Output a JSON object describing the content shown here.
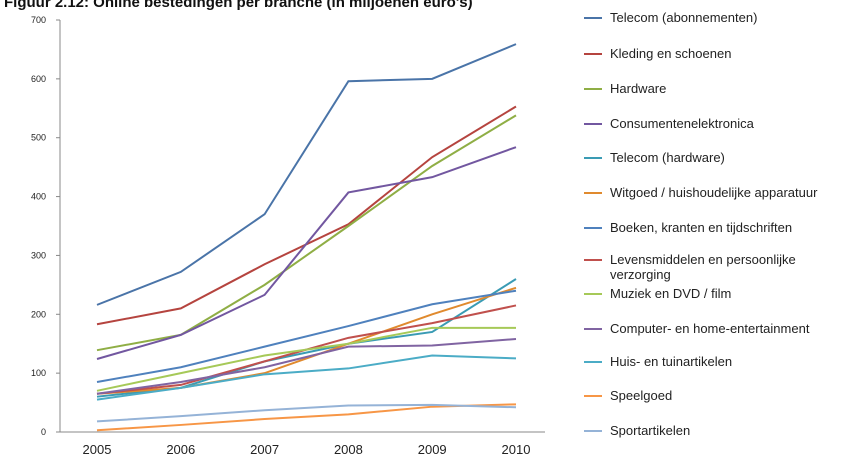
{
  "chart_data": {
    "type": "line",
    "title": "Figuur 2.12: Online bestedingen per branche (in miljoenen euro's)",
    "categories": [
      "2005",
      "2006",
      "2007",
      "2008",
      "2009",
      "2010"
    ],
    "ylim": [
      0,
      700
    ],
    "yticks": [
      0,
      100,
      200,
      300,
      400,
      500,
      600,
      700
    ],
    "legend": "right",
    "series": [
      {
        "name": "Telecom (abonnementen)",
        "color": "#4a74a8",
        "values": [
          216,
          272,
          370,
          596,
          600,
          659
        ]
      },
      {
        "name": "Kleding en schoenen",
        "color": "#b5443f",
        "values": [
          183,
          210,
          285,
          353,
          467,
          553
        ]
      },
      {
        "name": "Hardware",
        "color": "#8fae45",
        "values": [
          139,
          165,
          250,
          350,
          452,
          538
        ]
      },
      {
        "name": "Consumentenelektronica",
        "color": "#7257a0",
        "values": [
          124,
          165,
          233,
          407,
          433,
          484
        ]
      },
      {
        "name": "Telecom (hardware)",
        "color": "#3a9bb4",
        "values": [
          60,
          75,
          120,
          150,
          170,
          260
        ]
      },
      {
        "name": "Witgoed / huishoudelijke apparatuur",
        "color": "#e08a2e",
        "values": [
          65,
          75,
          100,
          150,
          200,
          245
        ]
      },
      {
        "name": "Boeken, kranten en tijdschriften",
        "color": "#4f81bd",
        "values": [
          85,
          110,
          145,
          180,
          217,
          240
        ]
      },
      {
        "name": "Levensmiddelen en persoonlijke verzorging",
        "color": "#c0504d",
        "values": [
          65,
          80,
          120,
          160,
          185,
          215
        ]
      },
      {
        "name": "Muziek en DVD / film",
        "color": "#a6c958",
        "values": [
          70,
          100,
          130,
          150,
          177,
          177
        ]
      },
      {
        "name": "Computer- en home-entertainment",
        "color": "#8064a2",
        "values": [
          65,
          85,
          110,
          145,
          147,
          158
        ]
      },
      {
        "name": "Huis- en tuinartikelen",
        "color": "#4bacc6",
        "values": [
          55,
          75,
          98,
          108,
          130,
          125
        ]
      },
      {
        "name": "Speelgoed",
        "color": "#f79646",
        "values": [
          3,
          12,
          22,
          30,
          43,
          47
        ]
      },
      {
        "name": "Sportartikelen",
        "color": "#95b3d7",
        "values": [
          18,
          27,
          37,
          45,
          46,
          42
        ]
      }
    ]
  }
}
